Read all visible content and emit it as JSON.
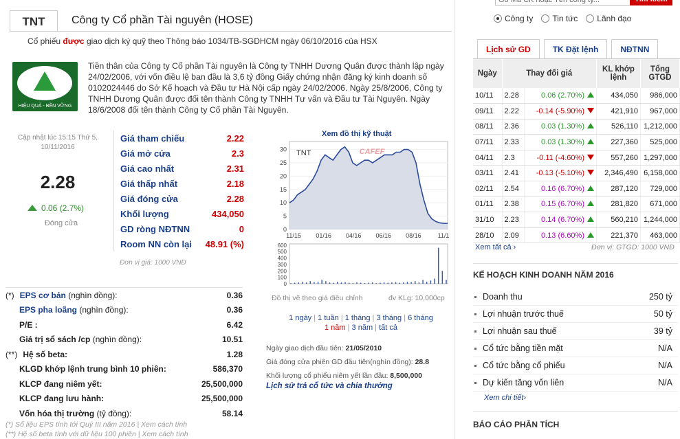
{
  "header": {
    "ticker": "TNT",
    "company": "Công ty Cổ phần Tài nguyên (HOSE)",
    "margin_prefix": "Cổ phiếu ",
    "margin_highlight": "được",
    "margin_suffix": " giao dịch ký quỹ theo Thông báo 1034/TB-SGDHCM ngày 06/10/2016 của HSX"
  },
  "logo": {
    "tagline": "HIỆU QUẢ - BỀN VỮNG"
  },
  "intro": "Tiền thân của Công ty Cổ phần Tài nguyên là Công ty TNHH Dương Quân được thành lập ngày 24/02/2006, với vốn điều lệ ban đầu là 3,6 tỷ đồng Giấy chứng nhận đăng ký kinh doanh số 0102024446 do Sở Kế hoạch và Đầu tư Hà Nội cấp ngày 24/02/2006. Ngày 25/8/2006, Công ty TNHH Dương Quân được đổi tên thành Công ty TNHH Tư vấn và Đầu tư Tài Nguyên. Ngày 18/6/2008 đổi tên thành Công ty Cổ phần Tài Nguyên.",
  "quote": {
    "updated": "Cập nhật lúc 15:15 Thứ 5, 10/11/2016",
    "price": "2.28",
    "change": "0.06 (2.7%)",
    "close_label": "Đóng cửa"
  },
  "prices": [
    {
      "label": "Giá tham chiếu",
      "value": "2.22"
    },
    {
      "label": "Giá mở cửa",
      "value": "2.3"
    },
    {
      "label": "Giá cao nhất",
      "value": "2.31"
    },
    {
      "label": "Giá thấp nhất",
      "value": "2.18"
    },
    {
      "label": "Giá đóng cửa",
      "value": "2.28"
    },
    {
      "label": "Khối lượng",
      "value": "434,050"
    },
    {
      "label": "GD ròng NĐTNN",
      "value": "0"
    },
    {
      "label": "Room NN còn lại",
      "value": "48.91 (%)"
    }
  ],
  "unit_note": "Đơn vị giá: 1000 VNĐ",
  "chart": {
    "title": "Xem đồ thị kỹ thuật",
    "watermark": "CAFEF",
    "foot_left": "Đồ thị vẽ theo giá điều chỉnh",
    "foot_right": "đv KLg: 10,000cp"
  },
  "chart_data": {
    "type": "line",
    "label": "TNT",
    "x_ticks": [
      "11/15",
      "01/16",
      "04/16",
      "06/16",
      "08/16",
      "11/1"
    ],
    "y_ticks": [
      0,
      5,
      10,
      15,
      20,
      25,
      30
    ],
    "ylim": [
      0,
      33
    ],
    "price_series": [
      10,
      11,
      13,
      14,
      15,
      17,
      19,
      22,
      26,
      28,
      27,
      26,
      28,
      30,
      31,
      29,
      25,
      24,
      25,
      26,
      26,
      25,
      26,
      27,
      28,
      28,
      28,
      29,
      29,
      30,
      30,
      29,
      25,
      17,
      11,
      6,
      4,
      3,
      2.5,
      2.3,
      2.28
    ],
    "volume_ticks": [
      0,
      100,
      200,
      300,
      400,
      500,
      600
    ],
    "volume_ylim": [
      0,
      620
    ],
    "volume_series": [
      10,
      15,
      20,
      30,
      20,
      40,
      25,
      30,
      60,
      40,
      20,
      15,
      30,
      20,
      25,
      15,
      10,
      20,
      15,
      10,
      15,
      20,
      10,
      15,
      20,
      15,
      20,
      25,
      15,
      20,
      30,
      25,
      40,
      20,
      60,
      30,
      50,
      80,
      560,
      200,
      60
    ]
  },
  "periods": {
    "items": [
      {
        "label": "1 ngày",
        "active": false
      },
      {
        "label": "1 tuần",
        "active": false
      },
      {
        "label": "1 tháng",
        "active": false
      },
      {
        "label": "3 tháng",
        "active": false
      },
      {
        "label": "6 tháng",
        "active": false
      },
      {
        "label": "1 năm",
        "active": true
      },
      {
        "label": "3 năm",
        "active": false
      },
      {
        "label": "tất cả",
        "active": false
      }
    ]
  },
  "ipo": {
    "first_day_label": "Ngày giao dịch đầu tiên:",
    "first_day": "21/05/2010",
    "first_price_label": "Giá đóng cửa phiên GD đầu tiên(nghìn đồng):",
    "first_price": "28.8",
    "listed_label": "Khối lượng cổ phiếu niêm yết lần đầu:",
    "listed": "8,500,000",
    "dividend_link": "Lịch sử trả cổ tức và chia thưởng"
  },
  "fundamentals": [
    {
      "prefix": "(*)",
      "label": "EPS cơ bản",
      "suffix": " (nghìn đồng):",
      "value": "0.36",
      "blue": true
    },
    {
      "prefix": "",
      "label": "EPS pha loãng",
      "suffix": " (nghìn đồng):",
      "value": "0.36",
      "blue": true
    },
    {
      "prefix": "",
      "label": "P/E :",
      "suffix": "",
      "value": "6.42",
      "blue": false
    },
    {
      "prefix": "",
      "label": "Giá trị sổ sách /cp",
      "suffix": " (nghìn đồng):",
      "value": "10.51",
      "blue": false
    },
    {
      "prefix": "(**)",
      "label": "Hệ số beta:",
      "suffix": "",
      "value": "1.28",
      "blue": false
    },
    {
      "prefix": "",
      "label": "KLGD khớp lệnh trung bình 10 phiên:",
      "suffix": "",
      "value": "586,370",
      "blue": false
    },
    {
      "prefix": "",
      "label": "KLCP đang niêm yết:",
      "suffix": "",
      "value": "25,500,000",
      "blue": false
    },
    {
      "prefix": "",
      "label": "KLCP đang lưu hành:",
      "suffix": "",
      "value": "25,500,000",
      "blue": false
    },
    {
      "prefix": "",
      "label": "Vốn hóa thị trường",
      "suffix": " (tỷ đồng):",
      "value": "58.14",
      "blue": false
    }
  ],
  "footnotes": [
    "(*) Số liệu EPS tính tới Quý III năm 2016 | Xem cách tính",
    "(**) Hệ số beta tính với dữ liệu 100 phiên | Xem cách tính"
  ],
  "search": {
    "placeholder": "Gõ Mã CK hoặc Tên công ty...",
    "button": "Tìm kiếm",
    "radios": [
      {
        "label": "Công ty",
        "checked": true
      },
      {
        "label": "Tin tức",
        "checked": false
      },
      {
        "label": "Lãnh đạo",
        "checked": false
      }
    ]
  },
  "tabs": [
    {
      "label": "Lịch sử GD",
      "active": true
    },
    {
      "label": "TK Đặt lệnh",
      "active": false
    },
    {
      "label": "NĐTNN",
      "active": false
    }
  ],
  "history": {
    "headers": [
      "Ngày",
      "Thay đổi giá",
      "KL khớp lệnh",
      "Tổng GTGD"
    ],
    "rows": [
      {
        "date": "10/11",
        "price": "2.28",
        "change": "0.06 (2.70%)",
        "dir": "up",
        "ceil": false,
        "vol": "434,050",
        "val": "986,000"
      },
      {
        "date": "09/11",
        "price": "2.22",
        "change": "-0.14 (-5.90%)",
        "dir": "down",
        "ceil": false,
        "vol": "421,910",
        "val": "967,000"
      },
      {
        "date": "08/11",
        "price": "2.36",
        "change": "0.03 (1.30%)",
        "dir": "up",
        "ceil": false,
        "vol": "526,110",
        "val": "1,212,000"
      },
      {
        "date": "07/11",
        "price": "2.33",
        "change": "0.03 (1.30%)",
        "dir": "up",
        "ceil": false,
        "vol": "227,360",
        "val": "525,000"
      },
      {
        "date": "04/11",
        "price": "2.3",
        "change": "-0.11 (-4.60%)",
        "dir": "down",
        "ceil": false,
        "vol": "557,260",
        "val": "1,297,000"
      },
      {
        "date": "03/11",
        "price": "2.41",
        "change": "-0.13 (-5.10%)",
        "dir": "down",
        "ceil": false,
        "vol": "2,346,490",
        "val": "6,158,000"
      },
      {
        "date": "02/11",
        "price": "2.54",
        "change": "0.16 (6.70%)",
        "dir": "up",
        "ceil": true,
        "vol": "287,120",
        "val": "729,000"
      },
      {
        "date": "01/11",
        "price": "2.38",
        "change": "0.15 (6.70%)",
        "dir": "up",
        "ceil": true,
        "vol": "281,820",
        "val": "671,000"
      },
      {
        "date": "31/10",
        "price": "2.23",
        "change": "0.14 (6.70%)",
        "dir": "up",
        "ceil": true,
        "vol": "560,210",
        "val": "1,244,000"
      },
      {
        "date": "28/10",
        "price": "2.09",
        "change": "0.13 (6.60%)",
        "dir": "up",
        "ceil": true,
        "vol": "221,370",
        "val": "463,000"
      }
    ],
    "more": "Xem tất cả ›",
    "unit": "Đơn vị: GTGD: 1000 VNĐ"
  },
  "plan": {
    "title": "KẾ HOẠCH KINH DOANH NĂM 2016",
    "rows": [
      {
        "label": "Doanh thu",
        "value": "250 tỷ"
      },
      {
        "label": "Lợi nhuận trước thuế",
        "value": "50 tỷ"
      },
      {
        "label": "Lợi nhuận sau thuế",
        "value": "39 tỷ"
      },
      {
        "label": "Cổ tức bằng tiền mặt",
        "value": "N/A"
      },
      {
        "label": "Cổ tức bằng cổ phiếu",
        "value": "N/A"
      },
      {
        "label": "Dự kiến tăng vốn liên",
        "value": "N/A"
      }
    ],
    "more": "Xem chi tiết›"
  },
  "analysis_title": "BÁO CÁO PHÂN TÍCH"
}
